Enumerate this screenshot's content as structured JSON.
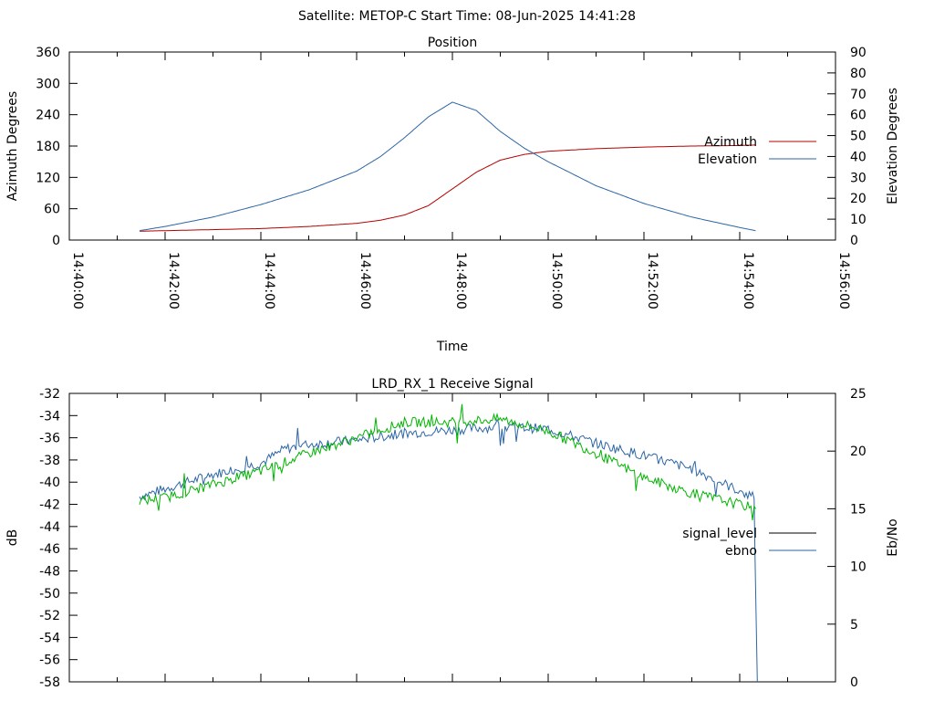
{
  "header": {
    "title": "Satellite: METOP-C    Start Time: 08-Jun-2025 14:41:28"
  },
  "colors": {
    "axis": "#000000",
    "azimuth": "#b40000",
    "elevation": "#2c66a7",
    "signal_level": "#000000",
    "ebno": "#2c66a7",
    "green_trace": "#00b400"
  },
  "chart_data": [
    {
      "type": "line",
      "title": "Position",
      "xlabel": "Time",
      "ylabel": "Azimuth Degrees",
      "y2label": "Elevation Degrees",
      "xlim": [
        "14:40:00",
        "14:56:00"
      ],
      "ylim": [
        0,
        360
      ],
      "y2lim": [
        0,
        90
      ],
      "x_ticks": [
        "14:40:00",
        "14:42:00",
        "14:44:00",
        "14:46:00",
        "14:48:00",
        "14:50:00",
        "14:52:00",
        "14:54:00",
        "14:56:00"
      ],
      "y_ticks": [
        "0",
        "60",
        "120",
        "180",
        "240",
        "300",
        "360"
      ],
      "y2_ticks": [
        "0",
        "10",
        "20",
        "30",
        "40",
        "50",
        "60",
        "70",
        "80",
        "90"
      ],
      "legend_position": "right",
      "grid": false,
      "series": [
        {
          "name": "Azimuth",
          "axis": "y",
          "color": "#b40000",
          "x": [
            "14:41:28",
            "14:42:00",
            "14:43:00",
            "14:44:00",
            "14:45:00",
            "14:46:00",
            "14:46:30",
            "14:47:00",
            "14:47:30",
            "14:48:00",
            "14:48:30",
            "14:49:00",
            "14:49:30",
            "14:50:00",
            "14:51:00",
            "14:52:00",
            "14:53:00",
            "14:54:00",
            "14:54:20"
          ],
          "y": [
            17,
            18,
            20,
            22,
            26,
            32,
            38,
            48,
            66,
            98,
            130,
            153,
            164,
            170,
            175,
            178,
            180,
            181,
            182
          ]
        },
        {
          "name": "Elevation",
          "axis": "y2",
          "color": "#2c66a7",
          "x": [
            "14:41:28",
            "14:42:00",
            "14:43:00",
            "14:44:00",
            "14:45:00",
            "14:46:00",
            "14:46:30",
            "14:47:00",
            "14:47:30",
            "14:48:00",
            "14:48:30",
            "14:49:00",
            "14:49:30",
            "14:50:00",
            "14:51:00",
            "14:52:00",
            "14:53:00",
            "14:54:00",
            "14:54:20"
          ],
          "y": [
            4.5,
            6.5,
            11,
            17,
            24,
            33,
            40,
            49,
            59,
            66,
            62,
            52,
            44,
            37.5,
            26,
            17.5,
            11,
            6,
            4.5
          ]
        }
      ]
    },
    {
      "type": "line",
      "title": "LRD_RX_1 Receive Signal",
      "xlabel": "",
      "ylabel": "dB",
      "y2label": "Eb/No",
      "xlim": [
        "14:40:00",
        "14:56:00"
      ],
      "ylim": [
        -58,
        -32
      ],
      "y2lim": [
        0,
        25
      ],
      "y_ticks": [
        "-32",
        "-34",
        "-36",
        "-38",
        "-40",
        "-42",
        "-44",
        "-46",
        "-48",
        "-50",
        "-52",
        "-54",
        "-56",
        "-58"
      ],
      "y2_ticks": [
        "0",
        "5",
        "10",
        "15",
        "20",
        "25"
      ],
      "legend_position": "right",
      "grid": false,
      "series": [
        {
          "name": "signal_level",
          "axis": "y",
          "color": "#000000",
          "x": [],
          "y": []
        },
        {
          "name": "ebno",
          "axis": "y",
          "color": "#2c66a7",
          "x": [
            "14:41:28",
            "14:42:00",
            "14:43:00",
            "14:44:00",
            "14:44:30",
            "14:45:00",
            "14:46:00",
            "14:47:00",
            "14:48:00",
            "14:49:00",
            "14:50:00",
            "14:51:00",
            "14:52:00",
            "14:53:00",
            "14:54:00",
            "14:54:18",
            "14:54:20",
            "14:54:22"
          ],
          "y": [
            -41.3,
            -40.6,
            -39.3,
            -38.3,
            -37.0,
            -36.6,
            -36.2,
            -35.6,
            -35.3,
            -35.0,
            -35.2,
            -36.5,
            -37.6,
            -38.8,
            -40.8,
            -41.5,
            -50,
            -58
          ]
        },
        {
          "name": "",
          "axis": "y",
          "color": "#00b400",
          "x": [
            "14:41:28",
            "14:42:00",
            "14:43:00",
            "14:44:00",
            "14:45:00",
            "14:46:00",
            "14:47:00",
            "14:48:00",
            "14:49:00",
            "14:50:00",
            "14:51:00",
            "14:52:00",
            "14:53:00",
            "14:54:00",
            "14:54:20"
          ],
          "y": [
            -41.7,
            -41.4,
            -40.2,
            -39.0,
            -37.4,
            -36.0,
            -34.6,
            -34.6,
            -34.3,
            -35.4,
            -37.4,
            -39.6,
            -41.0,
            -42.0,
            -42.4
          ]
        }
      ]
    }
  ]
}
